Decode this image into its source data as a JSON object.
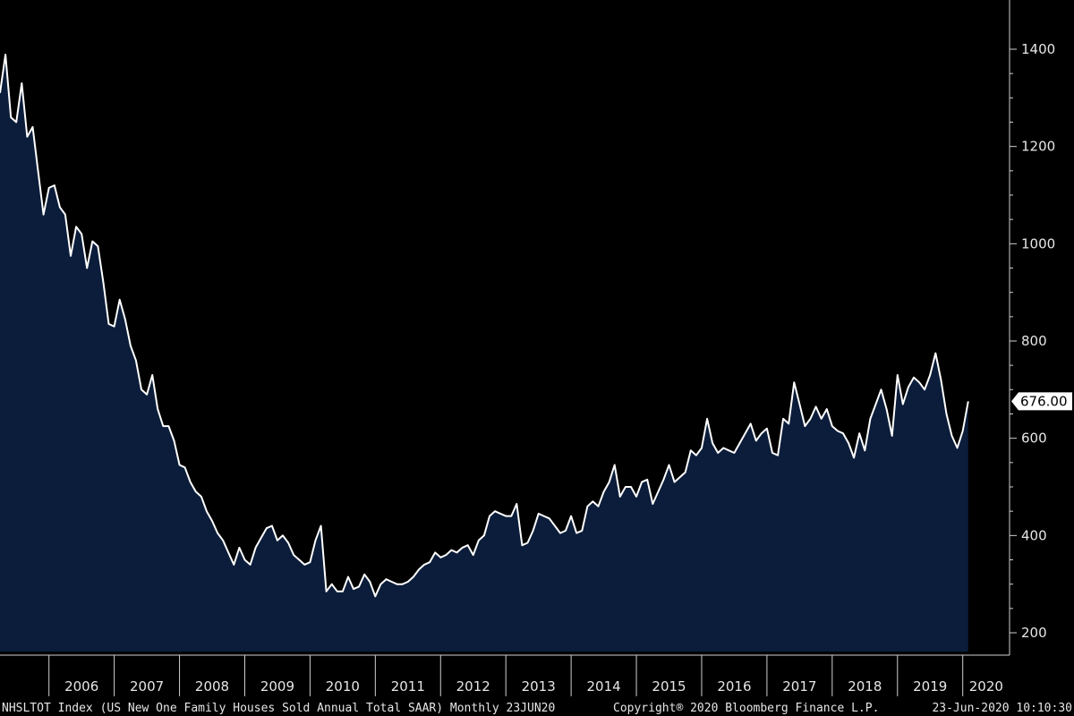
{
  "colors": {
    "background": "#000000",
    "area_fill": "#0b1d3a",
    "line": "#ffffff",
    "axis": "#cfcfcf",
    "text": "#e6e6e6"
  },
  "footer": {
    "left": "NHSLTOT Index (US New One Family Houses Sold Annual Total SAAR)  Monthly 23JUN20",
    "center": "Copyright® 2020 Bloomberg Finance L.P.",
    "right": "23-Jun-2020 10:10:30"
  },
  "chart_data": {
    "type": "area",
    "ylim": [
      170,
      1430
    ],
    "yticks": [
      200,
      400,
      600,
      800,
      1000,
      1200,
      1400
    ],
    "grid": false,
    "y_axis_side": "right",
    "last_value_label": "676.00",
    "x_start": "2005-04",
    "x_end": "2020-05",
    "year_labels": [
      "2006",
      "2007",
      "2008",
      "2009",
      "2010",
      "2011",
      "2012",
      "2013",
      "2014",
      "2015",
      "2016",
      "2017",
      "2018",
      "2019",
      "2020"
    ],
    "series": [
      {
        "points": [
          [
            "2005-04",
            1310
          ],
          [
            "2005-05",
            1389
          ],
          [
            "2005-06",
            1260
          ],
          [
            "2005-07",
            1250
          ],
          [
            "2005-08",
            1330
          ],
          [
            "2005-09",
            1220
          ],
          [
            "2005-10",
            1240
          ],
          [
            "2005-11",
            1150
          ],
          [
            "2005-12",
            1060
          ],
          [
            "2006-01",
            1115
          ],
          [
            "2006-02",
            1120
          ],
          [
            "2006-03",
            1075
          ],
          [
            "2006-04",
            1060
          ],
          [
            "2006-05",
            975
          ],
          [
            "2006-06",
            1035
          ],
          [
            "2006-07",
            1020
          ],
          [
            "2006-08",
            950
          ],
          [
            "2006-09",
            1005
          ],
          [
            "2006-10",
            995
          ],
          [
            "2006-11",
            920
          ],
          [
            "2006-12",
            835
          ],
          [
            "2007-01",
            830
          ],
          [
            "2007-02",
            885
          ],
          [
            "2007-03",
            845
          ],
          [
            "2007-04",
            790
          ],
          [
            "2007-05",
            760
          ],
          [
            "2007-06",
            700
          ],
          [
            "2007-07",
            690
          ],
          [
            "2007-08",
            730
          ],
          [
            "2007-09",
            660
          ],
          [
            "2007-10",
            625
          ],
          [
            "2007-11",
            625
          ],
          [
            "2007-12",
            595
          ],
          [
            "2008-01",
            545
          ],
          [
            "2008-02",
            540
          ],
          [
            "2008-03",
            510
          ],
          [
            "2008-04",
            490
          ],
          [
            "2008-05",
            480
          ],
          [
            "2008-06",
            450
          ],
          [
            "2008-07",
            430
          ],
          [
            "2008-08",
            405
          ],
          [
            "2008-09",
            390
          ],
          [
            "2008-10",
            365
          ],
          [
            "2008-11",
            340
          ],
          [
            "2008-12",
            375
          ],
          [
            "2009-01",
            350
          ],
          [
            "2009-02",
            340
          ],
          [
            "2009-03",
            375
          ],
          [
            "2009-04",
            395
          ],
          [
            "2009-05",
            415
          ],
          [
            "2009-06",
            420
          ],
          [
            "2009-07",
            390
          ],
          [
            "2009-08",
            400
          ],
          [
            "2009-09",
            385
          ],
          [
            "2009-10",
            360
          ],
          [
            "2009-11",
            350
          ],
          [
            "2009-12",
            340
          ],
          [
            "2010-01",
            345
          ],
          [
            "2010-02",
            390
          ],
          [
            "2010-03",
            420
          ],
          [
            "2010-04",
            285
          ],
          [
            "2010-05",
            300
          ],
          [
            "2010-06",
            285
          ],
          [
            "2010-07",
            285
          ],
          [
            "2010-08",
            315
          ],
          [
            "2010-09",
            290
          ],
          [
            "2010-10",
            295
          ],
          [
            "2010-11",
            320
          ],
          [
            "2010-12",
            305
          ],
          [
            "2011-01",
            275
          ],
          [
            "2011-02",
            300
          ],
          [
            "2011-03",
            310
          ],
          [
            "2011-04",
            305
          ],
          [
            "2011-05",
            300
          ],
          [
            "2011-06",
            300
          ],
          [
            "2011-07",
            305
          ],
          [
            "2011-08",
            315
          ],
          [
            "2011-09",
            330
          ],
          [
            "2011-10",
            340
          ],
          [
            "2011-11",
            345
          ],
          [
            "2011-12",
            365
          ],
          [
            "2012-01",
            355
          ],
          [
            "2012-02",
            360
          ],
          [
            "2012-03",
            370
          ],
          [
            "2012-04",
            365
          ],
          [
            "2012-05",
            375
          ],
          [
            "2012-06",
            380
          ],
          [
            "2012-07",
            360
          ],
          [
            "2012-08",
            390
          ],
          [
            "2012-09",
            400
          ],
          [
            "2012-10",
            440
          ],
          [
            "2012-11",
            450
          ],
          [
            "2012-12",
            445
          ],
          [
            "2013-01",
            440
          ],
          [
            "2013-02",
            440
          ],
          [
            "2013-03",
            465
          ],
          [
            "2013-04",
            380
          ],
          [
            "2013-05",
            385
          ],
          [
            "2013-06",
            410
          ],
          [
            "2013-07",
            445
          ],
          [
            "2013-08",
            440
          ],
          [
            "2013-09",
            435
          ],
          [
            "2013-10",
            420
          ],
          [
            "2013-11",
            405
          ],
          [
            "2013-12",
            410
          ],
          [
            "2014-01",
            440
          ],
          [
            "2014-02",
            405
          ],
          [
            "2014-03",
            410
          ],
          [
            "2014-04",
            460
          ],
          [
            "2014-05",
            470
          ],
          [
            "2014-06",
            460
          ],
          [
            "2014-07",
            490
          ],
          [
            "2014-08",
            510
          ],
          [
            "2014-09",
            545
          ],
          [
            "2014-10",
            480
          ],
          [
            "2014-11",
            500
          ],
          [
            "2014-12",
            500
          ],
          [
            "2015-01",
            480
          ],
          [
            "2015-02",
            510
          ],
          [
            "2015-03",
            515
          ],
          [
            "2015-04",
            465
          ],
          [
            "2015-05",
            490
          ],
          [
            "2015-06",
            515
          ],
          [
            "2015-07",
            545
          ],
          [
            "2015-08",
            510
          ],
          [
            "2015-09",
            520
          ],
          [
            "2015-10",
            530
          ],
          [
            "2015-11",
            575
          ],
          [
            "2015-12",
            565
          ],
          [
            "2016-01",
            580
          ],
          [
            "2016-02",
            640
          ],
          [
            "2016-03",
            590
          ],
          [
            "2016-04",
            570
          ],
          [
            "2016-05",
            580
          ],
          [
            "2016-06",
            575
          ],
          [
            "2016-07",
            570
          ],
          [
            "2016-08",
            590
          ],
          [
            "2016-09",
            610
          ],
          [
            "2016-10",
            630
          ],
          [
            "2016-11",
            595
          ],
          [
            "2016-12",
            610
          ],
          [
            "2017-01",
            620
          ],
          [
            "2017-02",
            570
          ],
          [
            "2017-03",
            565
          ],
          [
            "2017-04",
            640
          ],
          [
            "2017-05",
            630
          ],
          [
            "2017-06",
            715
          ],
          [
            "2017-07",
            670
          ],
          [
            "2017-08",
            625
          ],
          [
            "2017-09",
            640
          ],
          [
            "2017-10",
            665
          ],
          [
            "2017-11",
            640
          ],
          [
            "2017-12",
            660
          ],
          [
            "2018-01",
            625
          ],
          [
            "2018-02",
            615
          ],
          [
            "2018-03",
            610
          ],
          [
            "2018-04",
            590
          ],
          [
            "2018-05",
            560
          ],
          [
            "2018-06",
            610
          ],
          [
            "2018-07",
            575
          ],
          [
            "2018-08",
            640
          ],
          [
            "2018-09",
            670
          ],
          [
            "2018-10",
            700
          ],
          [
            "2018-11",
            660
          ],
          [
            "2018-12",
            605
          ],
          [
            "2019-01",
            730
          ],
          [
            "2019-02",
            670
          ],
          [
            "2019-03",
            705
          ],
          [
            "2019-04",
            725
          ],
          [
            "2019-05",
            715
          ],
          [
            "2019-06",
            700
          ],
          [
            "2019-07",
            730
          ],
          [
            "2019-08",
            775
          ],
          [
            "2019-09",
            720
          ],
          [
            "2019-10",
            650
          ],
          [
            "2019-11",
            605
          ],
          [
            "2019-12",
            580
          ],
          [
            "2020-01",
            615
          ],
          [
            "2020-02",
            676
          ]
        ]
      }
    ]
  }
}
